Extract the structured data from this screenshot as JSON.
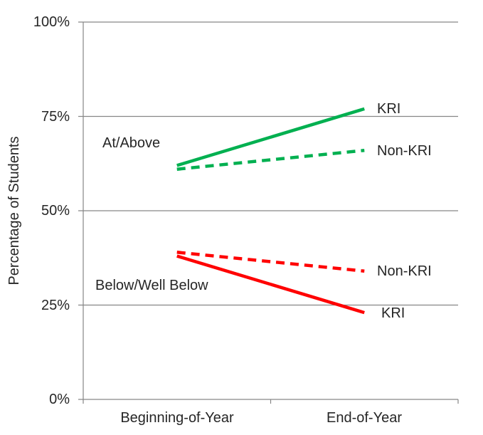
{
  "chart_data": {
    "type": "line",
    "title": "",
    "ylabel": "Percentage of Students",
    "xlabel": "",
    "categories": [
      "Beginning-of-Year",
      "End-of-Year"
    ],
    "ylim": [
      0,
      100
    ],
    "grid": "horizontal",
    "legend_position": "end-of-line-labels",
    "y_ticks": [
      {
        "label": "100%",
        "value": 100
      },
      {
        "label": "75%",
        "value": 75
      },
      {
        "label": "50%",
        "value": 50
      },
      {
        "label": "25%",
        "value": 25
      },
      {
        "label": "0%",
        "value": 0
      }
    ],
    "series": [
      {
        "name": "KRI",
        "group": "At/Above",
        "style": "solid",
        "color": "#00B050",
        "values": [
          62,
          77
        ],
        "end_label": "KRI"
      },
      {
        "name": "Non-KRI",
        "group": "At/Above",
        "style": "dashed",
        "color": "#00B050",
        "values": [
          61,
          66
        ],
        "end_label": "Non-KRI"
      },
      {
        "name": "Non-KRI",
        "group": "Below/Well Below",
        "style": "dashed",
        "color": "#FF0000",
        "values": [
          39,
          34
        ],
        "end_label": "Non-KRI"
      },
      {
        "name": "KRI",
        "group": "Below/Well Below",
        "style": "solid",
        "color": "#FF0000",
        "values": [
          38,
          23
        ],
        "end_label": "KRI"
      }
    ],
    "annotations": [
      {
        "text": "At/Above"
      },
      {
        "text": "Below/Well Below"
      }
    ],
    "axis_color": "#868686",
    "text_color": "#262626"
  }
}
